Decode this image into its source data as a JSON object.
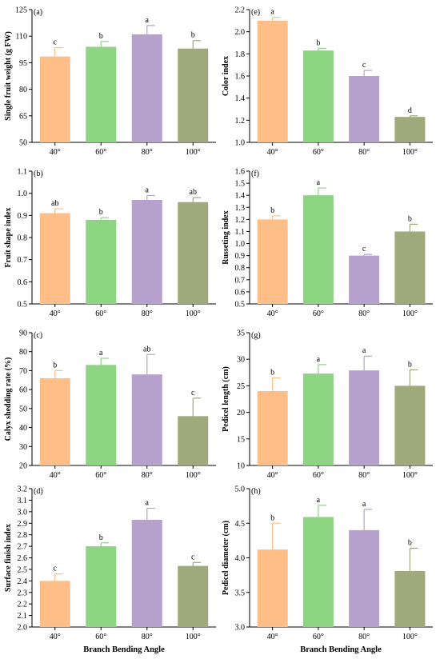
{
  "x_title": "Branch Bending Angle",
  "bar_colors": [
    "#FDBE87",
    "#8DD483",
    "#B6A0CC",
    "#A0A97C"
  ],
  "chart_data": [
    {
      "type": "bar",
      "panel": "(a)",
      "ylabel": "Single fruit weight (g FW)",
      "categories": [
        "40°",
        "60°",
        "80°",
        "100°"
      ],
      "values": [
        98.5,
        104,
        111,
        103
      ],
      "errors": [
        5,
        3,
        5,
        4.5
      ],
      "letters": [
        "c",
        "b",
        "a",
        "b"
      ],
      "ylim": [
        50,
        125
      ],
      "yticks": [
        50,
        65,
        80,
        95,
        110,
        125
      ],
      "ytick_labels": [
        "50",
        "65",
        "80",
        "95",
        "110",
        "125"
      ]
    },
    {
      "type": "bar",
      "panel": "(e)",
      "ylabel": "Color index",
      "categories": [
        "40°",
        "60°",
        "80°",
        "100°"
      ],
      "values": [
        2.1,
        1.83,
        1.6,
        1.23
      ],
      "errors": [
        0.03,
        0.02,
        0.05,
        0.01
      ],
      "letters": [
        "a",
        "b",
        "c",
        "d"
      ],
      "ylim": [
        1.0,
        2.2
      ],
      "yticks": [
        1.0,
        1.2,
        1.4,
        1.6,
        1.8,
        2.0,
        2.2
      ],
      "ytick_labels": [
        "1.0",
        "1.2",
        "1.4",
        "1.6",
        "1.8",
        "2.0",
        "2.2"
      ]
    },
    {
      "type": "bar",
      "panel": "(b)",
      "ylabel": "Fruit shape index",
      "categories": [
        "40°",
        "60°",
        "80°",
        "100°"
      ],
      "values": [
        0.91,
        0.88,
        0.97,
        0.96
      ],
      "errors": [
        0.02,
        0.01,
        0.02,
        0.02
      ],
      "letters": [
        "ab",
        "b",
        "a",
        "ab"
      ],
      "ylim": [
        0.5,
        1.1
      ],
      "yticks": [
        0.5,
        0.6,
        0.7,
        0.8,
        0.9,
        1.0,
        1.1
      ],
      "ytick_labels": [
        "0.5",
        "0.6",
        "0.7",
        "0.8",
        "0.9",
        "1.0",
        "1.1"
      ]
    },
    {
      "type": "bar",
      "panel": "(f)",
      "ylabel": "Russeting index",
      "categories": [
        "40°",
        "60°",
        "80°",
        "100°"
      ],
      "values": [
        1.2,
        1.4,
        0.9,
        1.1
      ],
      "errors": [
        0.03,
        0.06,
        0.01,
        0.06
      ],
      "letters": [
        "b",
        "a",
        "c",
        "b"
      ],
      "ylim": [
        0.5,
        1.6
      ],
      "yticks": [
        0.5,
        0.6,
        0.7,
        0.8,
        0.9,
        1.0,
        1.1,
        1.2,
        1.3,
        1.4,
        1.5,
        1.6
      ],
      "ytick_labels": [
        "0.5",
        "0.6",
        "0.7",
        "0.8",
        "0.9",
        "1.0",
        "1.1",
        "1.2",
        "1.3",
        "1.4",
        "1.5",
        "1.6"
      ]
    },
    {
      "type": "bar",
      "panel": "(c)",
      "ylabel": "Calyx shedding rate (%)",
      "categories": [
        "40°",
        "60°",
        "80°",
        "100°"
      ],
      "values": [
        66,
        73,
        68,
        46
      ],
      "errors": [
        4,
        3.5,
        10.5,
        9.5
      ],
      "letters": [
        "b",
        "a",
        "ab",
        "c"
      ],
      "ylim": [
        20,
        90
      ],
      "yticks": [
        20,
        30,
        40,
        50,
        60,
        70,
        80,
        90
      ],
      "ytick_labels": [
        "20",
        "30",
        "40",
        "50",
        "60",
        "70",
        "80",
        "90"
      ]
    },
    {
      "type": "bar",
      "panel": "(g)",
      "ylabel": "Pedicel length (cm)",
      "categories": [
        "40°",
        "60°",
        "80°",
        "100°"
      ],
      "values": [
        24,
        27.3,
        27.9,
        25
      ],
      "errors": [
        2.5,
        1.7,
        2.7,
        3
      ],
      "letters": [
        "b",
        "a",
        "a",
        "b"
      ],
      "ylim": [
        10,
        35
      ],
      "yticks": [
        10,
        15,
        20,
        25,
        30,
        35
      ],
      "ytick_labels": [
        "10",
        "15",
        "20",
        "25",
        "30",
        "35"
      ]
    },
    {
      "type": "bar",
      "panel": "(d)",
      "ylabel": "Surface finish index",
      "categories": [
        "40°",
        "60°",
        "80°",
        "100°"
      ],
      "values": [
        2.4,
        2.7,
        2.93,
        2.53
      ],
      "errors": [
        0.06,
        0.03,
        0.1,
        0.03
      ],
      "letters": [
        "c",
        "b",
        "a",
        "c"
      ],
      "ylim": [
        2.0,
        3.2
      ],
      "yticks": [
        2.0,
        2.1,
        2.2,
        2.3,
        2.4,
        2.5,
        2.6,
        2.7,
        2.8,
        2.9,
        3.0,
        3.1,
        3.2
      ],
      "ytick_labels": [
        "2.0",
        "2.1",
        "2.2",
        "2.3",
        "2.4",
        "2.5",
        "2.6",
        "2.7",
        "2.8",
        "2.9",
        "3.0",
        "3.1",
        "3.2"
      ]
    },
    {
      "type": "bar",
      "panel": "(h)",
      "ylabel": "Pedicel diameter (cm)",
      "categories": [
        "40°",
        "60°",
        "80°",
        "100°"
      ],
      "values": [
        4.12,
        4.59,
        4.4,
        3.81
      ],
      "errors": [
        0.38,
        0.17,
        0.3,
        0.33
      ],
      "letters": [
        "b",
        "a",
        "a",
        "b"
      ],
      "ylim": [
        3.0,
        5.0
      ],
      "yticks": [
        3.0,
        3.5,
        4.0,
        4.5,
        5.0
      ],
      "ytick_labels": [
        "3.0",
        "3.5",
        "4.0",
        "4.5",
        "5.0"
      ]
    }
  ]
}
